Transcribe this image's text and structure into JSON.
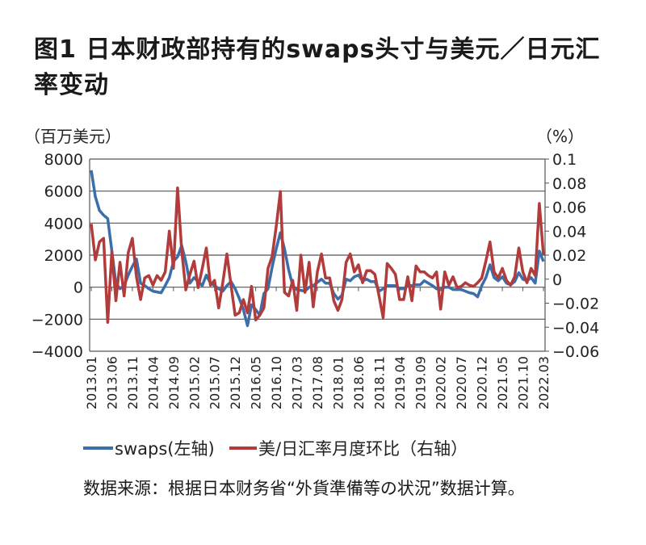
{
  "title": "图1 日本财政部持有的swaps头寸与美元／日元汇率变动",
  "source": "数据来源：根据日本财务省“外貨準備等の状況”数据计算。",
  "chart_data": {
    "type": "line",
    "title": "图1 日本财政部持有的swaps头寸与美元／日元汇率变动",
    "left_axis": {
      "label": "（百万美元）",
      "ylim": [
        -4000,
        8000
      ],
      "ticks": [
        8000,
        6000,
        4000,
        2000,
        0,
        -2000,
        -4000
      ],
      "tick_labels": [
        "8000",
        "6000",
        "4000",
        "2000",
        "0",
        "−2000",
        "−4000"
      ]
    },
    "right_axis": {
      "label": "（%）",
      "ylim": [
        -0.06,
        0.1
      ],
      "ticks": [
        0.1,
        0.08,
        0.06,
        0.04,
        0.02,
        0,
        -0.02,
        -0.04,
        -0.06
      ],
      "tick_labels": [
        "0.1",
        "0.08",
        "0.06",
        "0.04",
        "0.02",
        "0",
        "−0.02",
        "−0.04",
        "−0.06"
      ]
    },
    "x_start": "2013.01",
    "x_end": "2022.03",
    "x_tick_labels": [
      "2013.01",
      "2013.06",
      "2013.11",
      "2014.04",
      "2014.09",
      "2015.02",
      "2015.07",
      "2015.12",
      "2016.05",
      "2016.10",
      "2017.03",
      "2017.08",
      "2018.01",
      "2018.06",
      "2018.11",
      "2019.04",
      "2019.09",
      "2020.02",
      "2020.07",
      "2020.12",
      "2021.05",
      "2021.10",
      "2022.03"
    ],
    "grid": "horizontal",
    "legend_position": "bottom",
    "series": [
      {
        "name": "swaps(左轴)",
        "axis": "left",
        "color": "#3c6eaa",
        "values": [
          7300,
          5640,
          4790,
          4500,
          4280,
          2270,
          250,
          -100,
          100,
          750,
          1300,
          1760,
          250,
          100,
          -100,
          -250,
          -300,
          -350,
          100,
          600,
          1600,
          1900,
          2600,
          1600,
          250,
          600,
          350,
          100,
          750,
          250,
          100,
          -100,
          -250,
          100,
          350,
          -100,
          -700,
          -1400,
          -2400,
          -1100,
          -1400,
          -1750,
          -400,
          -100,
          1250,
          2400,
          3400,
          2400,
          1100,
          100,
          -150,
          -200,
          -250,
          0,
          100,
          300,
          500,
          250,
          250,
          -400,
          -750,
          -500,
          500,
          400,
          650,
          750,
          400,
          500,
          350,
          350,
          -250,
          -100,
          100,
          100,
          100,
          -100,
          -100,
          100,
          100,
          150,
          150,
          400,
          250,
          100,
          -100,
          -150,
          0,
          0,
          -150,
          -150,
          -150,
          -250,
          -350,
          -400,
          -600,
          100,
          600,
          1400,
          600,
          400,
          650,
          250,
          150,
          350,
          900,
          500,
          400,
          600,
          250,
          2250,
          1600
        ]
      },
      {
        "name": "美/日汇率月度环比（右轴）",
        "axis": "right",
        "color": "#b23b3b",
        "values": [
          0.046,
          0.016,
          0.031,
          0.034,
          -0.036,
          0.023,
          -0.018,
          0.014,
          -0.014,
          0.022,
          0.034,
          0.002,
          -0.017,
          0.001,
          0.003,
          -0.005,
          0.003,
          -0.001,
          0.006,
          0.04,
          0.009,
          0.076,
          0.024,
          -0.009,
          0.004,
          0.015,
          -0.007,
          0.009,
          0.026,
          -0.005,
          -0.001,
          -0.024,
          -0.003,
          0.021,
          -0.005,
          -0.03,
          -0.028,
          -0.017,
          -0.028,
          -0.006,
          -0.034,
          -0.03,
          -0.024,
          0.009,
          0.019,
          0.044,
          0.073,
          -0.011,
          -0.014,
          -0.001,
          -0.026,
          0.02,
          -0.011,
          0.014,
          -0.023,
          0.006,
          0.021,
          0.001,
          0.001,
          -0.018,
          -0.026,
          -0.017,
          0.014,
          0.021,
          0.006,
          0.012,
          -0.003,
          0.007,
          0.007,
          0.004,
          -0.014,
          -0.032,
          0.013,
          0.009,
          0.004,
          -0.017,
          -0.017,
          0.002,
          -0.018,
          0.011,
          0.006,
          0.006,
          0.003,
          0.001,
          0.006,
          -0.025,
          0.006,
          -0.005,
          0.002,
          -0.007,
          -0.006,
          -0.003,
          -0.005,
          -0.006,
          -0.003,
          0.001,
          0.015,
          0.031,
          0.006,
          0.001,
          0.009,
          -0.001,
          -0.005,
          0.002,
          0.026,
          0.006,
          -0.003,
          0.009,
          0.003,
          0.063,
          0.02
        ]
      }
    ]
  }
}
